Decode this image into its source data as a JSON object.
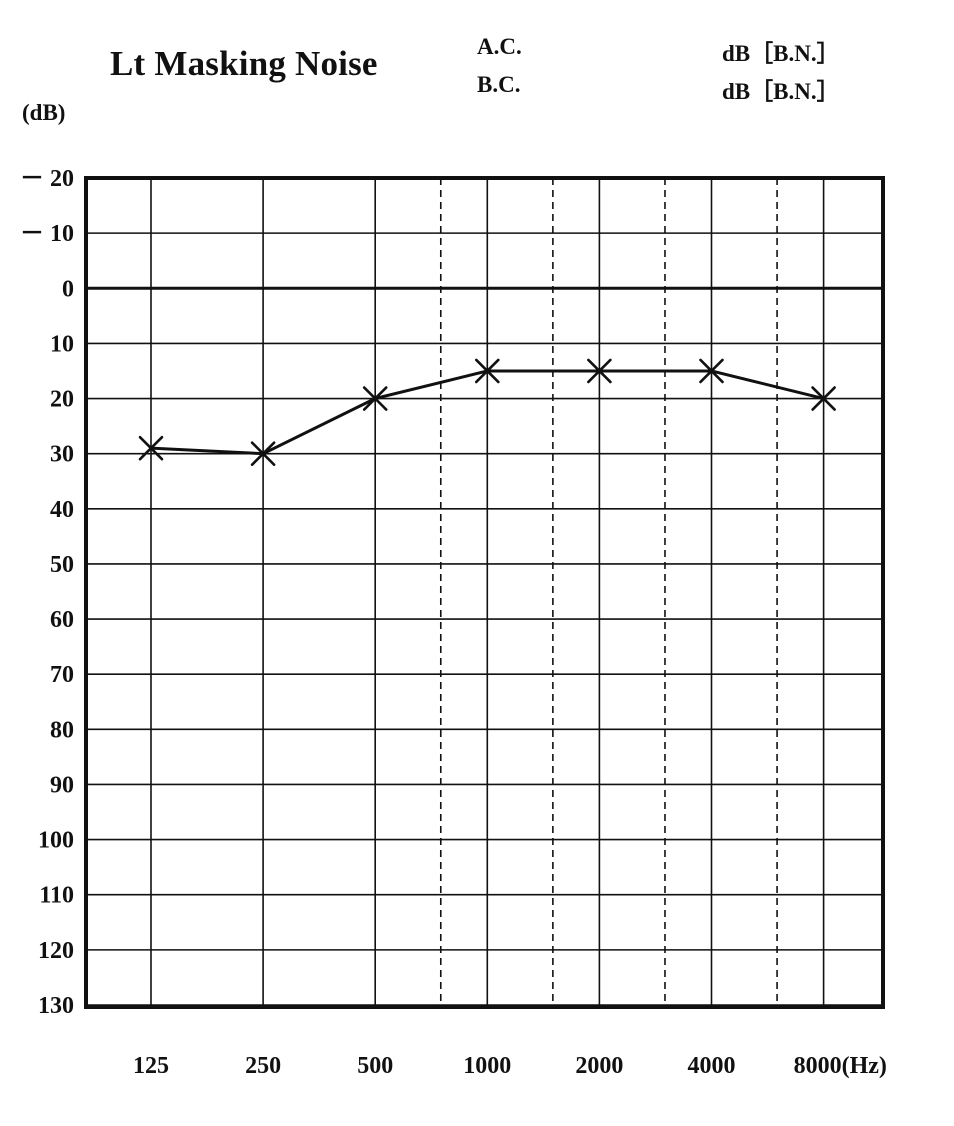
{
  "header": {
    "title": "Lt Masking Noise",
    "ac_label": "A.C.",
    "bc_label": "B.C.",
    "ac_unit": "dB［B.N.］",
    "bc_unit": "dB［B.N.］"
  },
  "chart_data": {
    "type": "line",
    "title": "Lt Masking Noise",
    "ylabel": "(dB)",
    "xlabel": "",
    "x_tick_labels": [
      "125",
      "250",
      "500",
      "1000",
      "2000",
      "4000",
      "8000(Hz)"
    ],
    "y_tick_labels": [
      "－ 20",
      "－ 10",
      "0",
      "10",
      "20",
      "30",
      "40",
      "50",
      "60",
      "70",
      "80",
      "90",
      "100",
      "110",
      "120",
      "130"
    ],
    "y_ticks": [
      -20,
      -10,
      0,
      10,
      20,
      30,
      40,
      50,
      60,
      70,
      80,
      90,
      100,
      110,
      120,
      130
    ],
    "ylim": [
      -20,
      130
    ],
    "y_inverted": true,
    "x_scale": "log2",
    "grid": true,
    "colors": {
      "line": "#111111",
      "grid": "#111111",
      "background": "#ffffff"
    },
    "series": [
      {
        "marker": "x",
        "x": [
          125,
          250,
          500,
          1000,
          2000,
          4000,
          8000
        ],
        "y": [
          29,
          30,
          20,
          15,
          15,
          15,
          20
        ]
      }
    ]
  }
}
